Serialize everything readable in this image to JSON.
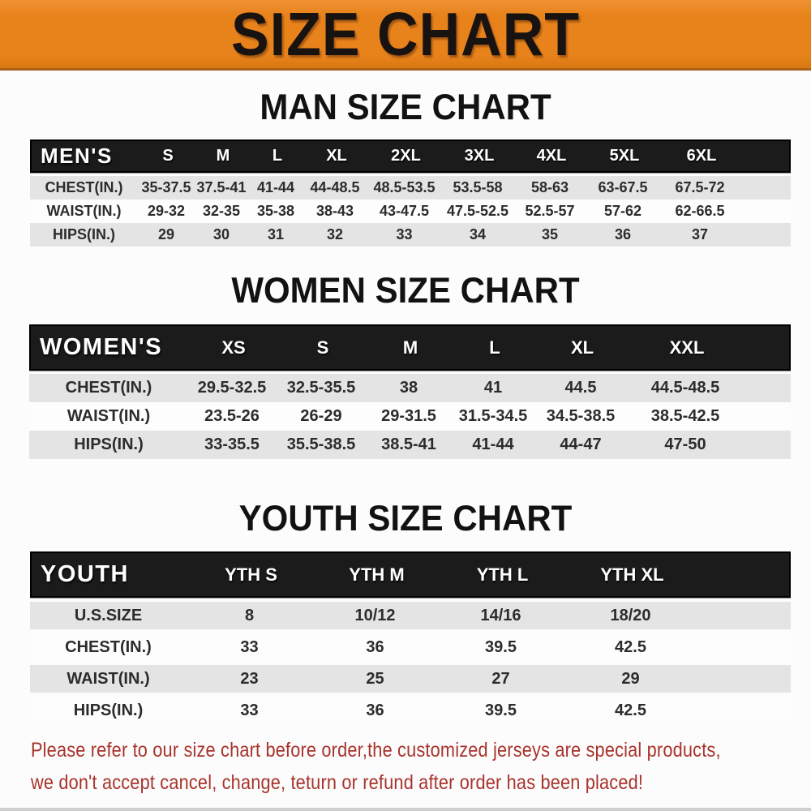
{
  "banner": {
    "title": "SIZE CHART"
  },
  "colors": {
    "banner_bg": "#E8831C",
    "bar_bg": "#1B1B1B",
    "row_gray": "#E4E4E4",
    "footer_red": "#A8332C"
  },
  "sections": [
    {
      "id": "men",
      "heading": "MAN SIZE CHART",
      "header": {
        "label": "MEN'S",
        "columns": [
          "S",
          "M",
          "L",
          "XL",
          "2XL",
          "3XL",
          "4XL",
          "5XL",
          "6XL"
        ]
      },
      "rows": [
        {
          "label": "CHEST(IN.)",
          "values": [
            "35-37.5",
            "37.5-41",
            "41-44",
            "44-48.5",
            "48.5-53.5",
            "53.5-58",
            "58-63",
            "63-67.5",
            "67.5-72"
          ]
        },
        {
          "label": "WAIST(IN.)",
          "values": [
            "29-32",
            "32-35",
            "35-38",
            "38-43",
            "43-47.5",
            "47.5-52.5",
            "52.5-57",
            "57-62",
            "62-66.5"
          ]
        },
        {
          "label": "HIPS(IN.)",
          "values": [
            "29",
            "30",
            "31",
            "32",
            "33",
            "34",
            "35",
            "36",
            "37"
          ]
        }
      ]
    },
    {
      "id": "women",
      "heading": "WOMEN SIZE CHART",
      "header": {
        "label": "WOMEN'S",
        "columns": [
          "XS",
          "S",
          "M",
          "L",
          "XL",
          "XXL"
        ]
      },
      "rows": [
        {
          "label": "CHEST(IN.)",
          "values": [
            "29.5-32.5",
            "32.5-35.5",
            "38",
            "41",
            "44.5",
            "44.5-48.5"
          ]
        },
        {
          "label": "WAIST(IN.)",
          "values": [
            "23.5-26",
            "26-29",
            "29-31.5",
            "31.5-34.5",
            "34.5-38.5",
            "38.5-42.5"
          ]
        },
        {
          "label": "HIPS(IN.)",
          "values": [
            "33-35.5",
            "35.5-38.5",
            "38.5-41",
            "41-44",
            "44-47",
            "47-50"
          ]
        }
      ]
    },
    {
      "id": "youth",
      "heading": "YOUTH SIZE CHART",
      "header": {
        "label": "YOUTH",
        "columns": [
          "YTH S",
          "YTH M",
          "YTH L",
          "YTH XL"
        ]
      },
      "rows": [
        {
          "label": "U.S.SIZE",
          "values": [
            "8",
            "10/12",
            "14/16",
            "18/20"
          ]
        },
        {
          "label": "CHEST(IN.)",
          "values": [
            "33",
            "36",
            "39.5",
            "42.5"
          ]
        },
        {
          "label": "WAIST(IN.)",
          "values": [
            "23",
            "25",
            "27",
            "29"
          ]
        },
        {
          "label": "HIPS(IN.)",
          "values": [
            "33",
            "36",
            "39.5",
            "42.5"
          ]
        }
      ]
    }
  ],
  "footer": {
    "lines": [
      "Please refer to our size chart before order,the customized jerseys are special products,",
      "we don't accept cancel, change, teturn or refund after order has been placed!"
    ]
  }
}
